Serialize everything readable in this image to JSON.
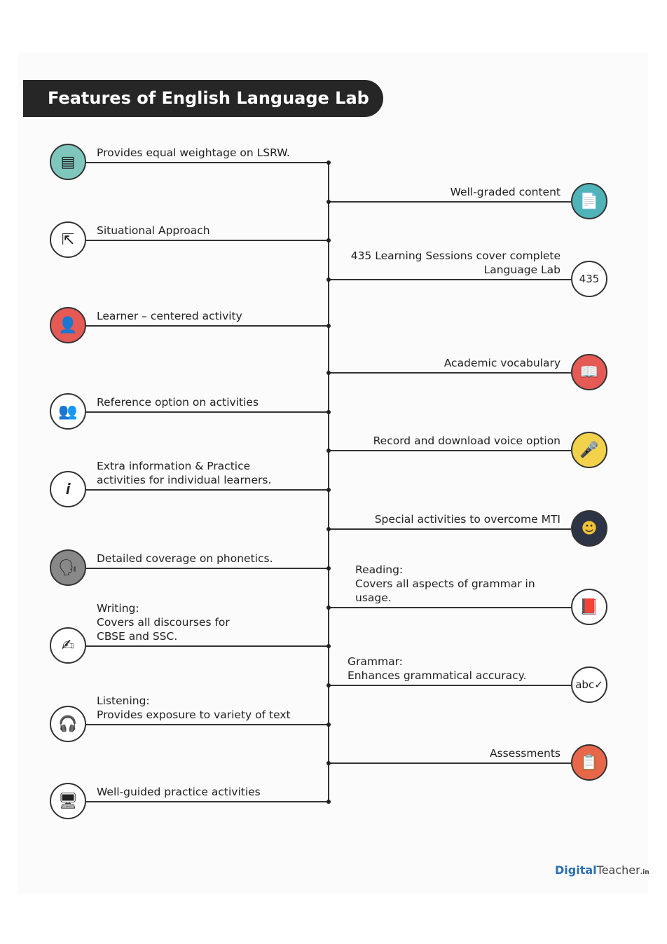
{
  "title": "Features of English Language Lab",
  "left_items": [
    {
      "lines": [
        "Provides equal weightage on LSRW."
      ],
      "icon": "lsrw-book-icon",
      "color": "#7fc6bd"
    },
    {
      "lines": [
        "Situational Approach"
      ],
      "icon": "direction-arrows-icon",
      "color": "#ffffff"
    },
    {
      "lines": [
        "Learner – centered activity"
      ],
      "icon": "learner-reading-icon",
      "color": "#e55a55"
    },
    {
      "lines": [
        "Reference option on activities"
      ],
      "icon": "people-reference-icon",
      "color": "#ffffff"
    },
    {
      "lines": [
        "Extra information & Practice",
        "activities for individual learners."
      ],
      "icon": "info-icon",
      "color": "#ffffff"
    },
    {
      "lines": [
        "Detailed coverage on phonetics."
      ],
      "icon": "speaking-head-icon",
      "color": "#888888"
    },
    {
      "lines": [
        "Writing:",
        "Covers all discourses for",
        "CBSE and SSC."
      ],
      "icon": "writing-person-icon",
      "color": "#ffffff"
    },
    {
      "lines": [
        "Listening:",
        "Provides exposure to variety of text"
      ],
      "icon": "headphones-person-icon",
      "color": "#ffffff"
    },
    {
      "lines": [
        "Well-guided practice activities"
      ],
      "icon": "practice-desk-icon",
      "color": "#ffffff"
    }
  ],
  "right_items": [
    {
      "lines": [
        "Well-graded content"
      ],
      "icon": "graded-document-icon",
      "color": "#4fb3b8",
      "align": "right"
    },
    {
      "lines": [
        "435 Learning Sessions cover complete",
        "Language Lab"
      ],
      "icon": "number-435-icon",
      "icon_text": "435",
      "color": "#ffffff",
      "align": "right"
    },
    {
      "lines": [
        "Academic vocabulary"
      ],
      "icon": "vocabulary-book-icon",
      "color": "#e55a55",
      "align": "right"
    },
    {
      "lines": [
        "Record and download voice option"
      ],
      "icon": "microphone-folder-icon",
      "color": "#f2d24b",
      "align": "right"
    },
    {
      "lines": [
        "Special activities to overcome MTI"
      ],
      "icon": "head-speaking-icon",
      "color": "#2c3446",
      "align": "right"
    },
    {
      "lines": [
        "Reading:",
        "Covers all aspects of grammar in",
        "usage."
      ],
      "icon": "reading-person-icon",
      "color": "#ffffff",
      "align": "left"
    },
    {
      "lines": [
        "Grammar:",
        "Enhances grammatical accuracy."
      ],
      "icon": "abc-check-icon",
      "icon_text": "abc✓",
      "color": "#ffffff",
      "align": "left"
    },
    {
      "lines": [
        "Assessments"
      ],
      "icon": "clipboard-icon",
      "color": "#e8674a",
      "align": "right"
    }
  ],
  "logo": {
    "brand": "Digital",
    "brand2": "Teacher",
    "suffix": ".in"
  }
}
